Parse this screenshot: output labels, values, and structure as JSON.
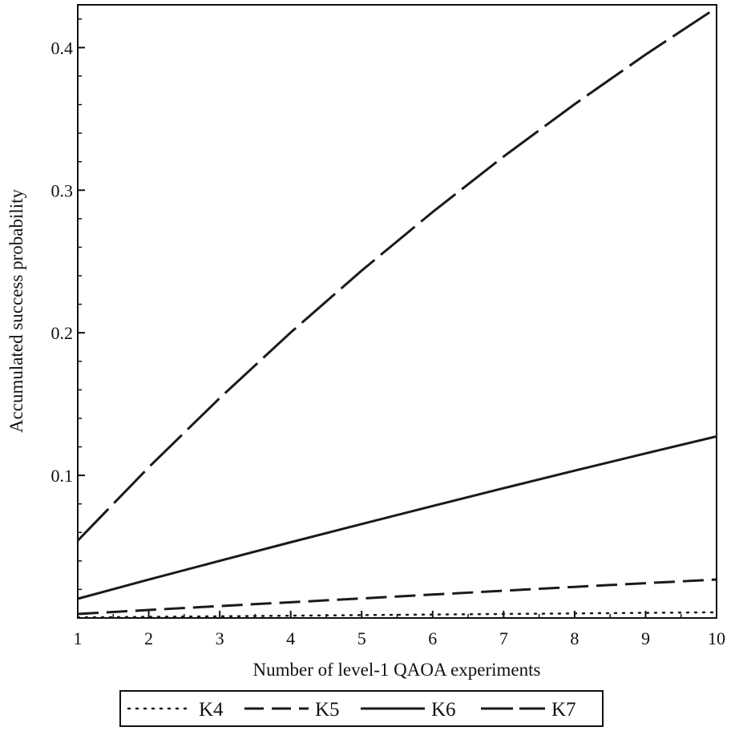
{
  "chart_data": {
    "type": "line",
    "xlabel": "Number of level-1 QAOA experiments",
    "ylabel": "Accumulated success probability",
    "xlim": [
      1,
      10
    ],
    "ylim": [
      0,
      0.43
    ],
    "x_ticks": [
      1,
      2,
      3,
      4,
      5,
      6,
      7,
      8,
      9,
      10
    ],
    "y_ticks": [
      0.1,
      0.2,
      0.3,
      0.4
    ],
    "y_tick_labels": [
      "0.1",
      "0.2",
      "0.3",
      "0.4"
    ],
    "grid": false,
    "legend_position": "bottom",
    "x": [
      1,
      2,
      3,
      4,
      5,
      6,
      7,
      8,
      9,
      10
    ],
    "series": [
      {
        "name": "K4",
        "style": "dotted",
        "values": [
          0.0004,
          0.0008,
          0.0012,
          0.0016,
          0.002,
          0.0024,
          0.0028,
          0.0032,
          0.0036,
          0.004
        ]
      },
      {
        "name": "K5",
        "style": "dashed",
        "values": [
          0.0028,
          0.0056,
          0.0084,
          0.011,
          0.0137,
          0.0164,
          0.0191,
          0.0218,
          0.0244,
          0.027
        ]
      },
      {
        "name": "K6",
        "style": "solid",
        "values": [
          0.0135,
          0.0269,
          0.0401,
          0.0531,
          0.0659,
          0.0785,
          0.091,
          0.1033,
          0.1154,
          0.1273
        ]
      },
      {
        "name": "K7",
        "style": "long-dash",
        "values": [
          0.0543,
          0.1057,
          0.1542,
          0.2002,
          0.2436,
          0.2847,
          0.3236,
          0.3603,
          0.3951,
          0.428
        ]
      }
    ]
  }
}
